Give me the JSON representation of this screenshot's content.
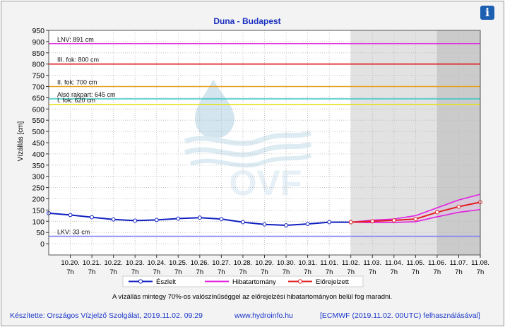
{
  "chart_data": {
    "type": "line",
    "title": "Duna - Budapest",
    "ylabel": "Vízállás [cm]",
    "ylim": [
      -50,
      950
    ],
    "yticks": [
      0,
      50,
      100,
      150,
      200,
      250,
      300,
      350,
      400,
      450,
      500,
      550,
      600,
      650,
      700,
      750,
      800,
      850,
      900,
      950
    ],
    "xlim": [
      "2019-10-19 07:00",
      "2019-11-08 07:00"
    ],
    "x_tick_labels": [
      {
        "date": "10.20.",
        "hour": "7h"
      },
      {
        "date": "10.21.",
        "hour": "7h"
      },
      {
        "date": "10.22.",
        "hour": "7h"
      },
      {
        "date": "10.23.",
        "hour": "7h"
      },
      {
        "date": "10.24.",
        "hour": "7h"
      },
      {
        "date": "10.25.",
        "hour": "7h"
      },
      {
        "date": "10.26.",
        "hour": "7h"
      },
      {
        "date": "10.27.",
        "hour": "7h"
      },
      {
        "date": "10.28.",
        "hour": "7h"
      },
      {
        "date": "10.29.",
        "hour": "7h"
      },
      {
        "date": "10.30.",
        "hour": "7h"
      },
      {
        "date": "10.31.",
        "hour": "7h"
      },
      {
        "date": "11.01.",
        "hour": "7h"
      },
      {
        "date": "11.02.",
        "hour": "7h"
      },
      {
        "date": "11.03.",
        "hour": "7h"
      },
      {
        "date": "11.04.",
        "hour": "7h"
      },
      {
        "date": "11.05.",
        "hour": "7h"
      },
      {
        "date": "11.06.",
        "hour": "7h"
      },
      {
        "date": "11.07.",
        "hour": "7h"
      },
      {
        "date": "11.08.",
        "hour": "7h"
      }
    ],
    "grid": true,
    "watermark": "OVF",
    "forecast_region": {
      "start": "2019-11-02 07:00",
      "uncertain_start": "2019-11-06 07:00",
      "end": "2019-11-08 07:00"
    },
    "thresholds": [
      {
        "label": "LNV: 891 cm",
        "value": 891,
        "color": "#e030e0"
      },
      {
        "label": "III. fok: 800 cm",
        "value": 800,
        "color": "#e01818"
      },
      {
        "label": "II. fok: 700 cm",
        "value": 700,
        "color": "#e8a020"
      },
      {
        "label": "Alsó rakpart: 645 cm",
        "value": 645,
        "color": "#38c8c8"
      },
      {
        "label": "I. fok: 620 cm",
        "value": 620,
        "color": "#e8e020"
      },
      {
        "label": "LKV: 33 cm",
        "value": 33,
        "color": "#8080f0"
      }
    ],
    "series": [
      {
        "name": "Észlelt",
        "color": "#1020c0",
        "x": [
          "2019-10-19 07:00",
          "2019-10-20 07:00",
          "2019-10-21 07:00",
          "2019-10-22 07:00",
          "2019-10-23 07:00",
          "2019-10-24 07:00",
          "2019-10-25 07:00",
          "2019-10-26 07:00",
          "2019-10-27 07:00",
          "2019-10-28 07:00",
          "2019-10-29 07:00",
          "2019-10-30 07:00",
          "2019-10-31 07:00",
          "2019-11-01 07:00",
          "2019-11-02 07:00"
        ],
        "values": [
          136,
          128,
          118,
          108,
          103,
          106,
          112,
          116,
          110,
          96,
          86,
          82,
          88,
          96,
          96
        ]
      },
      {
        "name": "Előrejelzett",
        "color": "#e02020",
        "x": [
          "2019-11-02 07:00",
          "2019-11-03 07:00",
          "2019-11-04 07:00",
          "2019-11-05 07:00",
          "2019-11-06 07:00",
          "2019-11-07 07:00",
          "2019-11-08 07:00"
        ],
        "values": [
          96,
          100,
          104,
          110,
          140,
          165,
          185
        ]
      },
      {
        "name": "Hibatartomány",
        "color": "#e020e0",
        "x": [
          "2019-11-02 07:00",
          "2019-11-03 07:00",
          "2019-11-04 07:00",
          "2019-11-05 07:00",
          "2019-11-06 07:00",
          "2019-11-07 07:00",
          "2019-11-08 07:00"
        ],
        "upper": [
          96,
          105,
          110,
          125,
          160,
          195,
          220
        ],
        "lower": [
          96,
          94,
          95,
          98,
          120,
          140,
          152
        ]
      }
    ]
  },
  "note": "A vízállás mintegy 70%-os valószínűséggel az előrejelzési hibatartományon belül fog maradni.",
  "footer": {
    "author": "Készítette: Országos Vízjelző Szolgálat, 2019.11.02. 09:29",
    "url": "www.hydroinfo.hu",
    "model": "[ECMWF (2019.11.02. 00UTC) felhasználásával]"
  },
  "info_button": {
    "label": "i",
    "icon": "info-icon"
  }
}
